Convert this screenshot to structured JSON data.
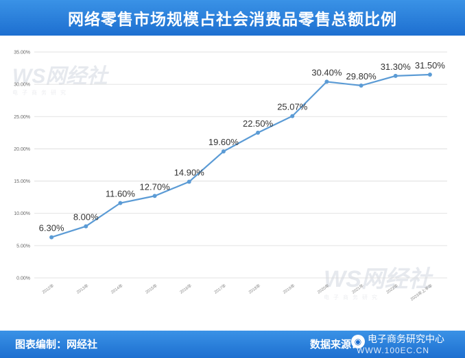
{
  "title": "网络零售市场规模占社会消费品零售总额比例",
  "footer": {
    "left": "图表编制：网经社",
    "right": "数据来源：",
    "brand": "电子商务研究中心",
    "brand_site": "WWW.100EC.CN"
  },
  "watermark": {
    "logo": "WS网经社",
    "sub": "电子商务研究"
  },
  "colors": {
    "header": "#2a84de",
    "line": "#5b9bd5",
    "grid": "#d9d9d9"
  },
  "chart_data": {
    "type": "line",
    "title": "网络零售市场规模占社会消费品零售总额比例",
    "categories": [
      "2012年",
      "2013年",
      "2014年",
      "2015年",
      "2016年",
      "2017年",
      "2018年",
      "2019年",
      "2020年",
      "2021年",
      "2022年",
      "2023年上半年"
    ],
    "values": [
      6.3,
      8.0,
      11.6,
      12.7,
      14.9,
      19.6,
      22.5,
      25.07,
      30.4,
      29.8,
      31.3,
      31.5
    ],
    "data_labels": [
      "6.30%",
      "8.00%",
      "11.60%",
      "12.70%",
      "14.90%",
      "19.60%",
      "22.50%",
      "25.07%",
      "30.40%",
      "29.80%",
      "31.30%",
      "31.50%"
    ],
    "yticks": [
      "0.00%",
      "5.00%",
      "10.00%",
      "15.00%",
      "20.00%",
      "25.00%",
      "30.00%",
      "35.00%"
    ],
    "ylim": [
      0,
      35
    ],
    "grid": true,
    "xlabel": "",
    "ylabel": ""
  }
}
